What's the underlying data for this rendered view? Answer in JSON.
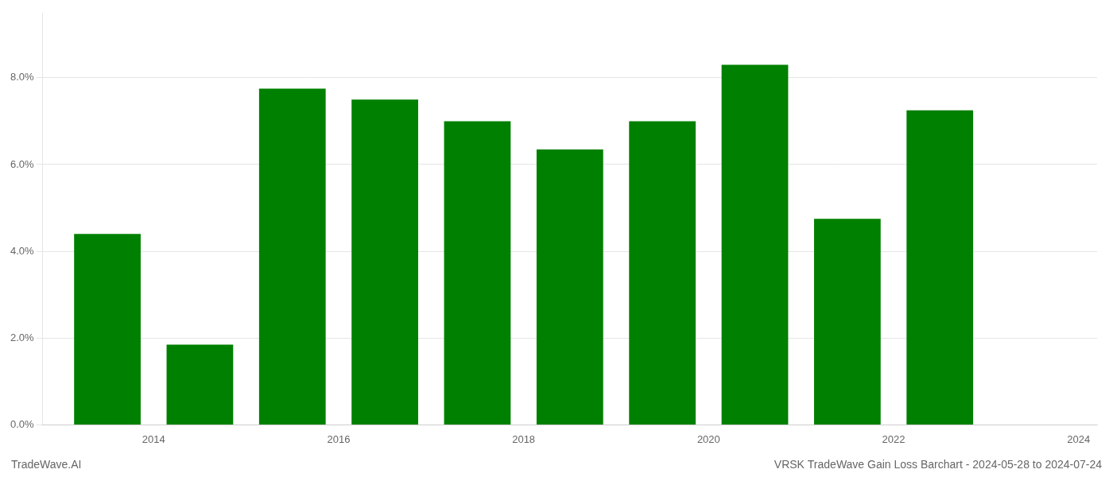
{
  "chart_data": {
    "type": "bar",
    "title": "VRSK TradeWave Gain Loss Barchart - 2024-05-28 to 2024-07-24",
    "annotations": [
      "TradeWave.AI"
    ],
    "x": [
      2014,
      2015,
      2016,
      2017,
      2018,
      2019,
      2020,
      2021,
      2022,
      2023
    ],
    "values": [
      0.044,
      0.0185,
      0.0775,
      0.075,
      0.07,
      0.0635,
      0.07,
      0.083,
      0.0475,
      0.0725
    ],
    "color": "#008000",
    "xlim": [
      2013.3,
      2024.7
    ],
    "xticks": [
      {
        "value": 2014.5,
        "label": "2014"
      },
      {
        "value": 2016.5,
        "label": "2016"
      },
      {
        "value": 2018.5,
        "label": "2018"
      },
      {
        "value": 2020.5,
        "label": "2020"
      },
      {
        "value": 2022.5,
        "label": "2022"
      },
      {
        "value": 2024.5,
        "label": "2024"
      }
    ],
    "ylim": [
      0,
      0.095
    ],
    "yticks": [
      {
        "value": 0.0,
        "label": "0.0%"
      },
      {
        "value": 0.02,
        "label": "2.0%"
      },
      {
        "value": 0.04,
        "label": "4.0%"
      },
      {
        "value": 0.06,
        "label": "6.0%"
      },
      {
        "value": 0.08,
        "label": "8.0%"
      }
    ],
    "grid": true
  }
}
